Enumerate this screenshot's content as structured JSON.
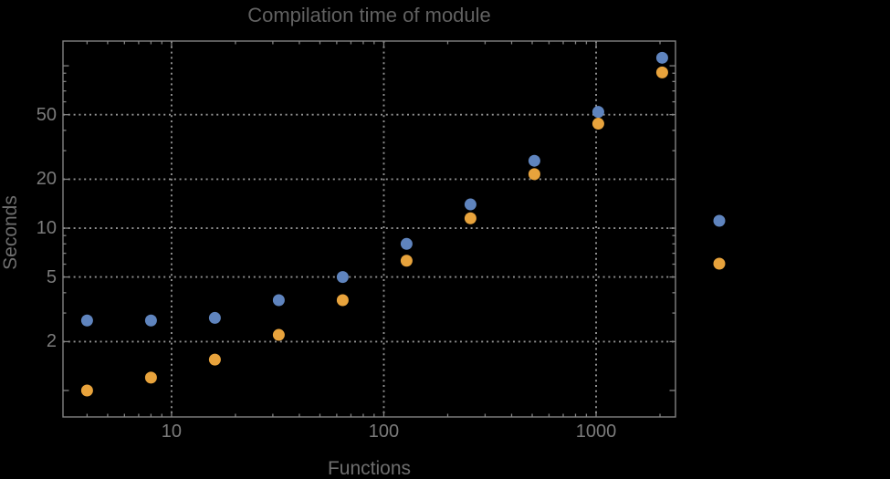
{
  "colors": {
    "background": "#000000",
    "frame": "#828282",
    "grid": "#919191",
    "tick_label_text": "#7b7b7b",
    "axis_label_text": "#6e6e6e",
    "title_text": "#616161",
    "series1": "#5f84be",
    "series2": "#e8a33c"
  },
  "chart_data": {
    "type": "scatter",
    "title": "Compilation time of module",
    "xlabel": "Functions",
    "ylabel": "Seconds",
    "xscale": "log",
    "yscale": "log",
    "xlim": [
      3.08,
      2366
    ],
    "ylim": [
      0.687,
      142
    ],
    "grid": true,
    "x_tick_labels": [
      10,
      100,
      1000
    ],
    "y_tick_labels": [
      2,
      5,
      10,
      20,
      50
    ],
    "x": [
      4,
      8,
      16,
      32,
      64,
      128,
      256,
      512,
      1024,
      2048
    ],
    "series": [
      {
        "name": "series-1",
        "color": "#5f84be",
        "values": [
          2.7,
          2.7,
          2.8,
          3.6,
          5.0,
          8.0,
          14,
          26,
          52,
          112
        ]
      },
      {
        "name": "series-2",
        "color": "#e8a33c",
        "values": [
          1.0,
          1.2,
          1.55,
          2.2,
          3.6,
          6.3,
          11.5,
          21.5,
          44,
          91
        ]
      }
    ],
    "legend": {
      "position": "right-outside",
      "entries": [
        {
          "name": "series-1",
          "color": "#5f84be",
          "label": ""
        },
        {
          "name": "series-2",
          "color": "#e8a33c",
          "label": ""
        }
      ]
    }
  }
}
